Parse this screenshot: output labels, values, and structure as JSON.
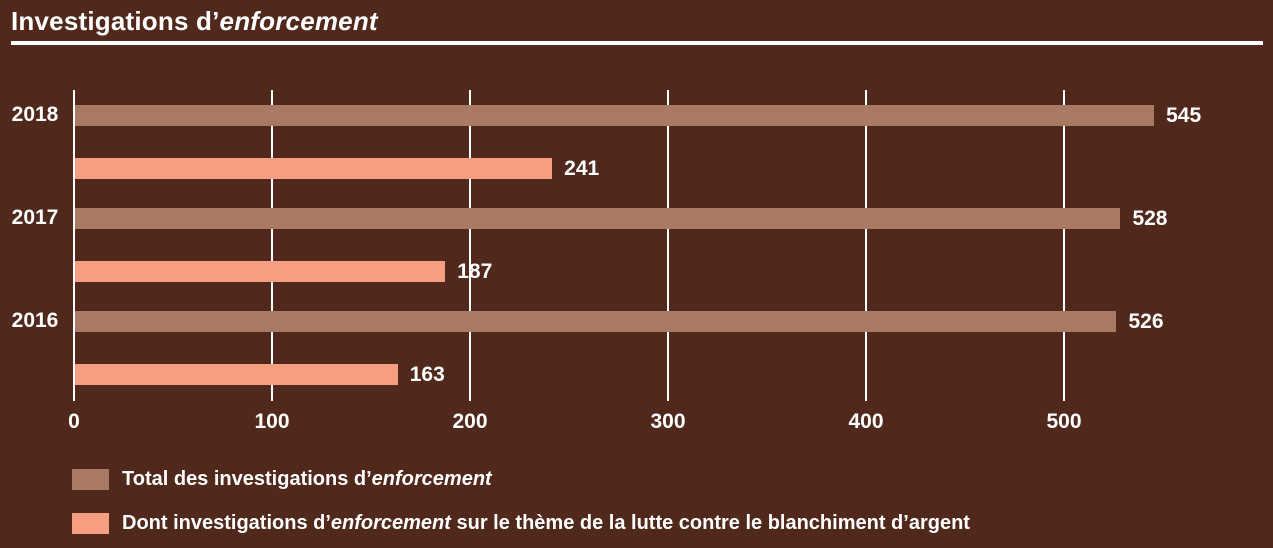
{
  "title": {
    "prefix": "Investigations d’",
    "italic": "enforcement"
  },
  "colors": {
    "background": "#50291c",
    "bar_total": "#a87a63",
    "bar_lba": "#f59e82",
    "text": "#ffffff",
    "grid": "#ffffff",
    "title_rule": "#ffffff"
  },
  "chart_data": {
    "type": "bar",
    "orientation": "horizontal",
    "title": "Investigations d’enforcement",
    "categories": [
      "2018",
      "2017",
      "2016"
    ],
    "series": [
      {
        "key": "total",
        "name": "Total des investigations d’enforcement",
        "color": "#a87a63",
        "values": [
          545,
          528,
          526
        ]
      },
      {
        "key": "lba",
        "name": "Dont investigations d’enforcement sur le thème de la lutte contre le blanchiment d’argent",
        "color": "#f59e82",
        "values": [
          241,
          187,
          163
        ]
      }
    ],
    "xlim": [
      0,
      600
    ],
    "xticks": [
      "0",
      "100",
      "200",
      "300",
      "400",
      "500"
    ],
    "grid": true,
    "value_labels": true,
    "legend_position": "bottom"
  },
  "legend": {
    "items": [
      {
        "pre": "Total des investigations d’",
        "italic": "enforcement",
        "post": ""
      },
      {
        "pre": "Dont investigations d’",
        "italic": "enforcement",
        "post": " sur le thème de la lutte contre le blanchiment d’argent"
      }
    ]
  }
}
